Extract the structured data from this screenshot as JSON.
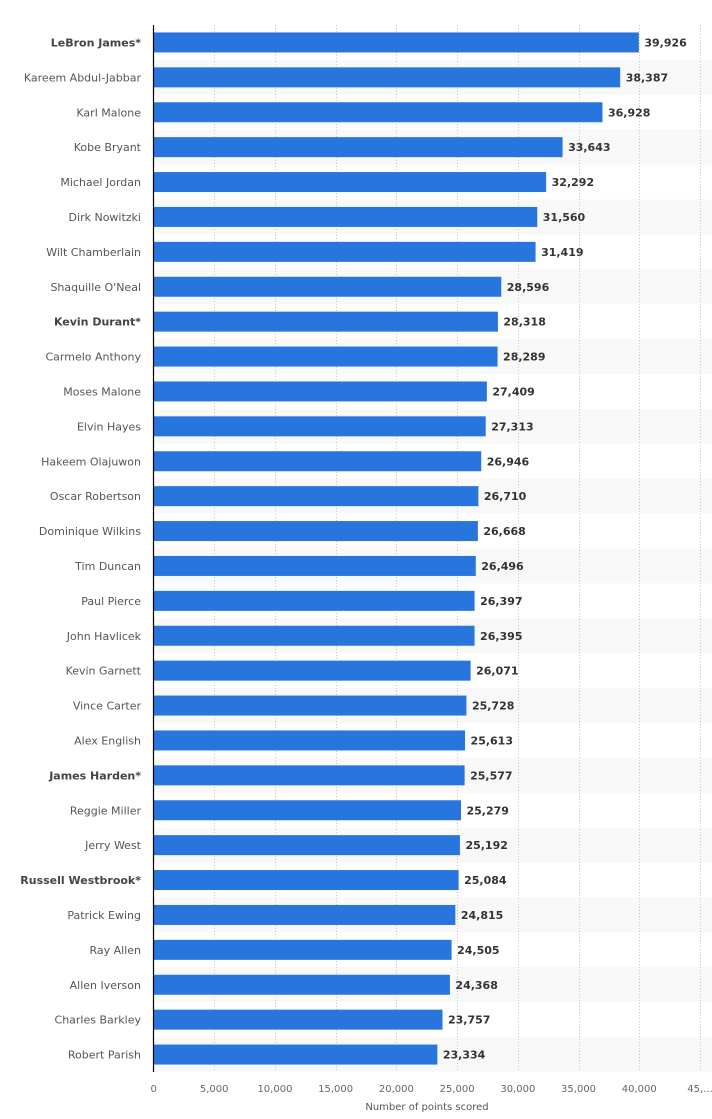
{
  "chart_data": {
    "type": "bar",
    "orientation": "horizontal",
    "title": "",
    "xlabel": "Number of points scored",
    "ylabel": "",
    "xlim": [
      0,
      45000
    ],
    "xticks": [
      0,
      5000,
      10000,
      15000,
      20000,
      25000,
      30000,
      35000,
      40000,
      45000
    ],
    "xtick_labels": [
      "0",
      "5,000",
      "10,000",
      "15,000",
      "20,000",
      "25,000",
      "30,000",
      "35,000",
      "40,000",
      "45,..."
    ],
    "grid": "vertical-dotted",
    "bar_color": "#2876dd",
    "categories": [
      "LeBron James*",
      "Kareem Abdul-Jabbar",
      "Karl Malone",
      "Kobe Bryant",
      "Michael Jordan",
      "Dirk Nowitzki",
      "Wilt Chamberlain",
      "Shaquille O'Neal",
      "Kevin Durant*",
      "Carmelo Anthony",
      "Moses Malone",
      "Elvin Hayes",
      "Hakeem Olajuwon",
      "Oscar Robertson",
      "Dominique Wilkins",
      "Tim Duncan",
      "Paul Pierce",
      "John Havlicek",
      "Kevin Garnett",
      "Vince Carter",
      "Alex English",
      "James Harden*",
      "Reggie Miller",
      "Jerry West",
      "Russell Westbrook*",
      "Patrick Ewing",
      "Ray Allen",
      "Allen Iverson",
      "Charles Barkley",
      "Robert Parish"
    ],
    "highlighted": [
      true,
      false,
      false,
      false,
      false,
      false,
      false,
      false,
      true,
      false,
      false,
      false,
      false,
      false,
      false,
      false,
      false,
      false,
      false,
      false,
      false,
      true,
      false,
      false,
      true,
      false,
      false,
      false,
      false,
      false
    ],
    "values": [
      39926,
      38387,
      36928,
      33643,
      32292,
      31560,
      31419,
      28596,
      28318,
      28289,
      27409,
      27313,
      26946,
      26710,
      26668,
      26496,
      26397,
      26395,
      26071,
      25728,
      25613,
      25577,
      25279,
      25192,
      25084,
      24815,
      24505,
      24368,
      23757,
      23334
    ],
    "value_labels": [
      "39,926",
      "38,387",
      "36,928",
      "33,643",
      "32,292",
      "31,560",
      "31,419",
      "28,596",
      "28,318",
      "28,289",
      "27,409",
      "27,313",
      "26,946",
      "26,710",
      "26,668",
      "26,496",
      "26,397",
      "26,395",
      "26,071",
      "25,728",
      "25,613",
      "25,577",
      "25,279",
      "25,192",
      "25,084",
      "24,815",
      "24,505",
      "24,368",
      "23,757",
      "23,334"
    ]
  }
}
